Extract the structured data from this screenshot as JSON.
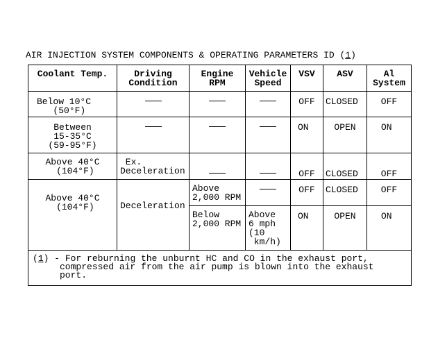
{
  "title": {
    "text": "AIR INJECTION SYSTEM COMPONENTS & OPERATING PARAMETERS ID (",
    "ref": "1",
    "close": ")"
  },
  "headers": [
    "Coolant Temp.",
    "Driving\nCondition",
    "Engine\nRPM",
    "Vehicle\nSpeed",
    "VSV",
    "ASV",
    "Al\nSystem"
  ],
  "rows": [
    {
      "coolant": "Below 10°C\n   (50°F)",
      "driving": "—",
      "rpm": "—",
      "speed": "—",
      "vsv": "OFF",
      "asv": "CLOSED",
      "ai": "OFF"
    },
    {
      "coolant": "Between\n15-35°C\n(59-95°F)",
      "driving": "—",
      "rpm": "—",
      "speed": "—",
      "vsv": "ON",
      "asv": "OPEN",
      "ai": "ON"
    },
    {
      "coolant": "Above 40°C\n (104°F)",
      "driving": " Ex.\nDeceleration",
      "rpm": "—",
      "speed": "—",
      "vsv": "OFF",
      "asv": "CLOSED",
      "ai": "OFF"
    },
    {
      "coolant": "Above 40°C\n (104°F)",
      "driving": "Deceleration",
      "sub": [
        {
          "rpm": "Above\n2,000 RPM",
          "speed": "—",
          "vsv": "OFF",
          "asv": "CLOSED",
          "ai": "OFF"
        },
        {
          "rpm": "Below\n2,000 RPM",
          "speed": "Above\n6 mph\n(10\n km/h)",
          "vsv": "ON",
          "asv": "OPEN",
          "ai": "ON"
        }
      ]
    }
  ],
  "footnote": {
    "ref": "1",
    "text": ") - For reburning the unburnt HC and CO in the exhaust port,\n     compressed air from the air pump is blown into the exhaust\n     port."
  }
}
